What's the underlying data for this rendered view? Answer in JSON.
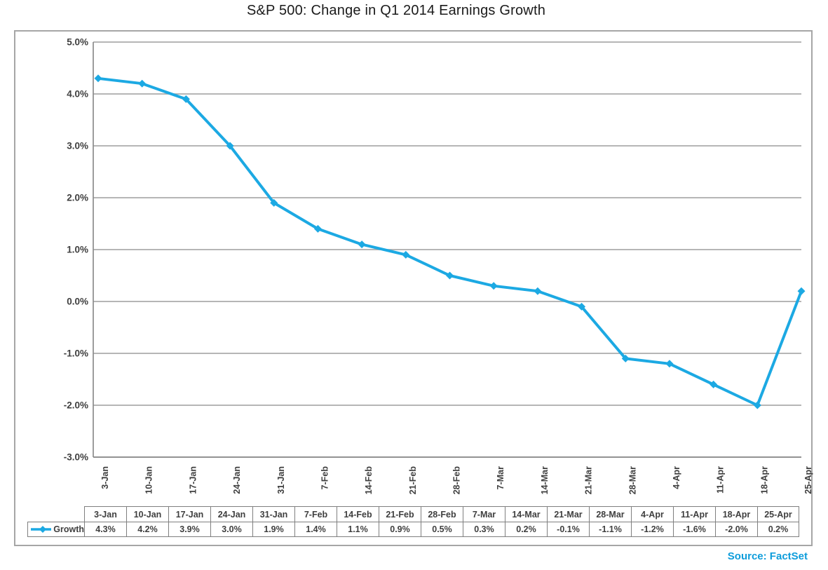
{
  "source_label": "Source: FactSet",
  "icons": {
    "legend_series": "line-diamond-icon"
  },
  "colors": {
    "line": "#1CA9E3",
    "source_text": "#0E9DDB",
    "grid": "#ABABAB",
    "axis": "#8C8C8C",
    "text": "#3F3F3F",
    "outer_border": "#A6A6A6",
    "table_border": "#7F7F7F",
    "title_text": "#1A1A1A"
  },
  "chart_data": {
    "type": "line",
    "title": "S&P 500: Change in Q1 2014 Earnings Growth",
    "categories": [
      "3-Jan",
      "10-Jan",
      "17-Jan",
      "24-Jan",
      "31-Jan",
      "7-Feb",
      "14-Feb",
      "21-Feb",
      "28-Feb",
      "7-Mar",
      "14-Mar",
      "21-Mar",
      "28-Mar",
      "4-Apr",
      "11-Apr",
      "18-Apr",
      "25-Apr"
    ],
    "series": [
      {
        "name": "Growth",
        "values": [
          4.3,
          4.2,
          3.9,
          3.0,
          1.9,
          1.4,
          1.1,
          0.9,
          0.5,
          0.3,
          0.2,
          -0.1,
          -1.1,
          -1.2,
          -1.6,
          -2.0,
          0.2
        ],
        "value_labels": [
          "4.3%",
          "4.2%",
          "3.9%",
          "3.0%",
          "1.9%",
          "1.4%",
          "1.1%",
          "0.9%",
          "0.5%",
          "0.3%",
          "0.2%",
          "-0.1%",
          "-1.1%",
          "-1.2%",
          "-1.6%",
          "-2.0%",
          "0.2%"
        ]
      }
    ],
    "xlabel": "",
    "ylabel": "",
    "ylim": [
      -3.0,
      5.0
    ],
    "y_tick_step": 1.0,
    "y_tick_labels": [
      "5.0%",
      "4.0%",
      "3.0%",
      "2.0%",
      "1.0%",
      "0.0%",
      "-1.0%",
      "-2.0%",
      "-3.0%"
    ],
    "grid": true,
    "marker": "diamond",
    "legend_position": "data-table-left"
  }
}
